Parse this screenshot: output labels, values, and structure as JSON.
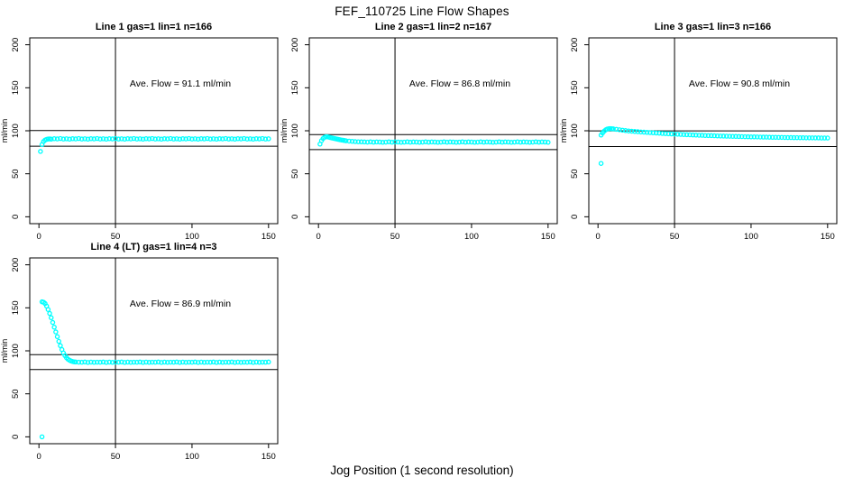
{
  "title": "FEF_110725  Line Flow Shapes",
  "xlabel": "Jog Position (1 second resolution)",
  "colors": {
    "points": "#00FFFF",
    "axis": "#000000"
  },
  "chart_data": [
    {
      "type": "scatter",
      "title": "Line 1 gas=1 lin=1 n=166",
      "annotation": "Ave. Flow =  91.1  ml/min",
      "ave_flow_ml_min": 91.1,
      "ylabel": "ml/min",
      "xlim": [
        0,
        150
      ],
      "ylim": [
        0,
        200
      ],
      "xticks": [
        0,
        50,
        100,
        150
      ],
      "yticks": [
        0,
        50,
        100,
        150,
        200
      ],
      "vline": 50,
      "hlines": [
        100.2,
        82.0
      ],
      "points": [
        [
          1,
          76
        ],
        [
          2,
          84
        ],
        [
          3,
          87.5
        ],
        [
          4,
          89.2
        ],
        [
          5,
          90
        ],
        [
          6,
          90.4
        ],
        [
          7,
          90.6
        ],
        [
          8,
          90.3
        ],
        [
          10,
          90.8
        ],
        [
          12,
          90.5
        ],
        [
          14,
          91.0
        ],
        [
          16,
          90.4
        ],
        [
          18,
          90.7
        ],
        [
          20,
          90.3
        ],
        [
          22,
          90.8
        ],
        [
          24,
          90.5
        ],
        [
          26,
          91.0
        ],
        [
          28,
          90.4
        ],
        [
          30,
          90.7
        ],
        [
          32,
          90.3
        ],
        [
          34,
          90.8
        ],
        [
          36,
          90.5
        ],
        [
          38,
          91.0
        ],
        [
          40,
          90.4
        ],
        [
          42,
          90.7
        ],
        [
          44,
          90.3
        ],
        [
          46,
          90.8
        ],
        [
          48,
          90.5
        ],
        [
          50,
          91.0
        ],
        [
          52,
          90.4
        ],
        [
          54,
          90.7
        ],
        [
          56,
          90.3
        ],
        [
          58,
          90.8
        ],
        [
          60,
          90.5
        ],
        [
          62,
          91.0
        ],
        [
          64,
          90.4
        ],
        [
          66,
          90.7
        ],
        [
          68,
          90.3
        ],
        [
          70,
          90.8
        ],
        [
          72,
          90.5
        ],
        [
          74,
          91.0
        ],
        [
          76,
          90.4
        ],
        [
          78,
          90.7
        ],
        [
          80,
          90.3
        ],
        [
          82,
          90.8
        ],
        [
          84,
          90.5
        ],
        [
          86,
          91.0
        ],
        [
          88,
          90.4
        ],
        [
          90,
          90.7
        ],
        [
          92,
          90.3
        ],
        [
          94,
          90.8
        ],
        [
          96,
          90.5
        ],
        [
          98,
          91.0
        ],
        [
          100,
          90.4
        ],
        [
          102,
          90.7
        ],
        [
          104,
          90.3
        ],
        [
          106,
          90.8
        ],
        [
          108,
          90.5
        ],
        [
          110,
          91.0
        ],
        [
          112,
          90.4
        ],
        [
          114,
          90.7
        ],
        [
          116,
          90.3
        ],
        [
          118,
          90.8
        ],
        [
          120,
          90.5
        ],
        [
          122,
          91.0
        ],
        [
          124,
          90.4
        ],
        [
          126,
          90.7
        ],
        [
          128,
          90.3
        ],
        [
          130,
          90.8
        ],
        [
          132,
          90.5
        ],
        [
          134,
          91.0
        ],
        [
          136,
          90.4
        ],
        [
          138,
          90.7
        ],
        [
          140,
          90.3
        ],
        [
          142,
          90.8
        ],
        [
          144,
          90.5
        ],
        [
          146,
          91.0
        ],
        [
          148,
          90.4
        ],
        [
          150,
          90.7
        ]
      ]
    },
    {
      "type": "scatter",
      "title": "Line 2 gas=1 lin=2 n=167",
      "annotation": "Ave. Flow =  86.8  ml/min",
      "ave_flow_ml_min": 86.8,
      "ylabel": "ml/min",
      "xlim": [
        0,
        150
      ],
      "ylim": [
        0,
        200
      ],
      "xticks": [
        0,
        50,
        100,
        150
      ],
      "yticks": [
        0,
        50,
        100,
        150,
        200
      ],
      "vline": 50,
      "hlines": [
        95.5,
        78.1
      ],
      "points": [
        [
          1,
          84.5
        ],
        [
          2,
          88.5
        ],
        [
          3,
          91
        ],
        [
          4,
          92.5
        ],
        [
          5,
          93
        ],
        [
          6,
          92.9
        ],
        [
          7,
          92.5
        ],
        [
          8,
          92
        ],
        [
          9,
          91.6
        ],
        [
          10,
          91.2
        ],
        [
          11,
          90.8
        ],
        [
          12,
          90.4
        ],
        [
          13,
          90
        ],
        [
          14,
          89.6
        ],
        [
          15,
          89.3
        ],
        [
          16,
          89
        ],
        [
          17,
          88.7
        ],
        [
          18,
          88.4
        ],
        [
          20,
          88
        ],
        [
          22,
          87.7
        ],
        [
          24,
          87.4
        ],
        [
          26,
          87.2
        ],
        [
          28,
          87.1
        ],
        [
          30,
          87
        ],
        [
          32,
          86.8
        ],
        [
          34,
          87.1
        ],
        [
          36,
          86.7
        ],
        [
          38,
          87.0
        ],
        [
          40,
          86.9
        ],
        [
          42,
          86.6
        ],
        [
          44,
          86.8
        ],
        [
          46,
          87.1
        ],
        [
          48,
          86.7
        ],
        [
          50,
          87.0
        ],
        [
          52,
          86.9
        ],
        [
          54,
          86.6
        ],
        [
          56,
          86.8
        ],
        [
          58,
          87.1
        ],
        [
          60,
          86.7
        ],
        [
          62,
          87.0
        ],
        [
          64,
          86.9
        ],
        [
          66,
          86.6
        ],
        [
          68,
          86.8
        ],
        [
          70,
          87.1
        ],
        [
          72,
          86.7
        ],
        [
          74,
          87.0
        ],
        [
          76,
          86.9
        ],
        [
          78,
          86.6
        ],
        [
          80,
          86.8
        ],
        [
          82,
          87.1
        ],
        [
          84,
          86.7
        ],
        [
          86,
          87.0
        ],
        [
          88,
          86.9
        ],
        [
          90,
          86.6
        ],
        [
          92,
          86.8
        ],
        [
          94,
          87.1
        ],
        [
          96,
          86.7
        ],
        [
          98,
          87.0
        ],
        [
          100,
          86.9
        ],
        [
          102,
          86.6
        ],
        [
          104,
          86.8
        ],
        [
          106,
          87.1
        ],
        [
          108,
          86.7
        ],
        [
          110,
          87.0
        ],
        [
          112,
          86.9
        ],
        [
          114,
          86.6
        ],
        [
          116,
          86.8
        ],
        [
          118,
          87.1
        ],
        [
          120,
          86.7
        ],
        [
          122,
          87.0
        ],
        [
          124,
          86.9
        ],
        [
          126,
          86.6
        ],
        [
          128,
          86.8
        ],
        [
          130,
          87.1
        ],
        [
          132,
          86.7
        ],
        [
          134,
          87.0
        ],
        [
          136,
          86.9
        ],
        [
          138,
          86.6
        ],
        [
          140,
          86.8
        ],
        [
          142,
          87.1
        ],
        [
          144,
          86.7
        ],
        [
          146,
          87.0
        ],
        [
          148,
          86.9
        ],
        [
          150,
          86.6
        ]
      ]
    },
    {
      "type": "scatter",
      "title": "Line 3 gas=1 lin=3 n=166",
      "annotation": "Ave. Flow =  90.8  ml/min",
      "ave_flow_ml_min": 90.8,
      "ylabel": "ml/min",
      "xlim": [
        0,
        150
      ],
      "ylim": [
        0,
        200
      ],
      "xticks": [
        0,
        50,
        100,
        150
      ],
      "yticks": [
        0,
        50,
        100,
        150,
        200
      ],
      "vline": 50,
      "hlines": [
        99.9,
        81.7
      ],
      "points": [
        [
          2,
          62
        ],
        [
          2,
          95
        ],
        [
          3,
          97.5
        ],
        [
          4,
          99.5
        ],
        [
          5,
          101
        ],
        [
          6,
          102
        ],
        [
          7,
          102.4
        ],
        [
          8,
          102.5
        ],
        [
          9,
          102.4
        ],
        [
          10,
          102.2
        ],
        [
          12,
          101.7
        ],
        [
          14,
          101.2
        ],
        [
          16,
          100.7
        ],
        [
          18,
          100.2
        ],
        [
          20,
          99.8
        ],
        [
          22,
          99.5
        ],
        [
          24,
          99.2
        ],
        [
          26,
          98.9
        ],
        [
          28,
          98.6
        ],
        [
          30,
          98.4
        ],
        [
          32,
          98.1
        ],
        [
          34,
          97.9
        ],
        [
          36,
          97.6
        ],
        [
          38,
          97.4
        ],
        [
          40,
          97.2
        ],
        [
          42,
          96.9
        ],
        [
          44,
          96.7
        ],
        [
          46,
          96.5
        ],
        [
          48,
          96.3
        ],
        [
          50,
          96.1
        ],
        [
          52,
          96.0
        ],
        [
          54,
          95.8
        ],
        [
          56,
          95.6
        ],
        [
          58,
          95.4
        ],
        [
          60,
          95.3
        ],
        [
          62,
          95.1
        ],
        [
          64,
          95.0
        ],
        [
          66,
          94.8
        ],
        [
          68,
          94.7
        ],
        [
          70,
          94.5
        ],
        [
          72,
          94.4
        ],
        [
          74,
          94.3
        ],
        [
          76,
          94.2
        ],
        [
          78,
          94.0
        ],
        [
          80,
          93.9
        ],
        [
          82,
          93.8
        ],
        [
          84,
          93.7
        ],
        [
          86,
          93.6
        ],
        [
          88,
          93.5
        ],
        [
          90,
          93.4
        ],
        [
          92,
          93.3
        ],
        [
          94,
          93.2
        ],
        [
          96,
          93.1
        ],
        [
          98,
          93.0
        ],
        [
          100,
          92.9
        ],
        [
          102,
          92.9
        ],
        [
          104,
          92.8
        ],
        [
          106,
          92.7
        ],
        [
          108,
          92.6
        ],
        [
          110,
          92.6
        ],
        [
          112,
          92.5
        ],
        [
          114,
          92.4
        ],
        [
          116,
          92.4
        ],
        [
          118,
          92.3
        ],
        [
          120,
          92.3
        ],
        [
          122,
          92.2
        ],
        [
          124,
          92.1
        ],
        [
          126,
          92.1
        ],
        [
          128,
          92.0
        ],
        [
          130,
          92.0
        ],
        [
          132,
          91.9
        ],
        [
          134,
          91.9
        ],
        [
          136,
          91.8
        ],
        [
          138,
          91.8
        ],
        [
          140,
          91.8
        ],
        [
          142,
          91.7
        ],
        [
          144,
          91.7
        ],
        [
          146,
          91.6
        ],
        [
          148,
          91.6
        ],
        [
          150,
          91.6
        ]
      ]
    },
    {
      "type": "scatter",
      "title": "Line 4 (LT) gas=1 lin=4 n=3",
      "annotation": "Ave. Flow =  86.9  ml/min",
      "ave_flow_ml_min": 86.9,
      "ylabel": "ml/min",
      "xlim": [
        0,
        150
      ],
      "ylim": [
        0,
        200
      ],
      "xticks": [
        0,
        50,
        100,
        150
      ],
      "yticks": [
        0,
        50,
        100,
        150,
        200
      ],
      "vline": 50,
      "hlines": [
        95.6,
        78.2
      ],
      "points": [
        [
          2,
          0
        ],
        [
          2,
          157
        ],
        [
          3,
          156.5
        ],
        [
          4,
          155
        ],
        [
          5,
          152
        ],
        [
          6,
          148
        ],
        [
          7,
          143.5
        ],
        [
          8,
          138.5
        ],
        [
          9,
          133
        ],
        [
          10,
          127.5
        ],
        [
          11,
          122
        ],
        [
          12,
          116.5
        ],
        [
          13,
          111
        ],
        [
          14,
          106
        ],
        [
          15,
          101.5
        ],
        [
          16,
          97.5
        ],
        [
          17,
          94.5
        ],
        [
          18,
          92
        ],
        [
          19,
          90.2
        ],
        [
          20,
          89
        ],
        [
          21,
          88.2
        ],
        [
          22,
          87.6
        ],
        [
          23,
          87.2
        ],
        [
          24,
          87
        ],
        [
          26,
          86.8
        ],
        [
          28,
          86.7
        ],
        [
          30,
          87.0
        ],
        [
          32,
          86.5
        ],
        [
          34,
          86.9
        ],
        [
          36,
          86.6
        ],
        [
          38,
          86.8
        ],
        [
          40,
          86.7
        ],
        [
          42,
          87.0
        ],
        [
          44,
          86.5
        ],
        [
          46,
          86.9
        ],
        [
          48,
          86.6
        ],
        [
          50,
          86.8
        ],
        [
          52,
          86.7
        ],
        [
          54,
          87.0
        ],
        [
          56,
          86.5
        ],
        [
          58,
          86.9
        ],
        [
          60,
          86.6
        ],
        [
          62,
          86.8
        ],
        [
          64,
          86.7
        ],
        [
          66,
          87.0
        ],
        [
          68,
          86.5
        ],
        [
          70,
          86.9
        ],
        [
          72,
          86.6
        ],
        [
          74,
          86.8
        ],
        [
          76,
          86.7
        ],
        [
          78,
          87.0
        ],
        [
          80,
          86.5
        ],
        [
          82,
          86.9
        ],
        [
          84,
          86.6
        ],
        [
          86,
          86.8
        ],
        [
          88,
          86.7
        ],
        [
          90,
          87.0
        ],
        [
          92,
          86.5
        ],
        [
          94,
          86.9
        ],
        [
          96,
          86.6
        ],
        [
          98,
          86.8
        ],
        [
          100,
          86.7
        ],
        [
          102,
          87.0
        ],
        [
          104,
          86.5
        ],
        [
          106,
          86.9
        ],
        [
          108,
          86.6
        ],
        [
          110,
          86.8
        ],
        [
          112,
          86.7
        ],
        [
          114,
          87.0
        ],
        [
          116,
          86.5
        ],
        [
          118,
          86.9
        ],
        [
          120,
          86.6
        ],
        [
          122,
          86.8
        ],
        [
          124,
          86.7
        ],
        [
          126,
          87.0
        ],
        [
          128,
          86.5
        ],
        [
          130,
          86.9
        ],
        [
          132,
          86.6
        ],
        [
          134,
          86.8
        ],
        [
          136,
          86.7
        ],
        [
          138,
          87.0
        ],
        [
          140,
          86.5
        ],
        [
          142,
          86.9
        ],
        [
          144,
          86.6
        ],
        [
          146,
          86.8
        ],
        [
          148,
          86.7
        ],
        [
          150,
          87.0
        ]
      ]
    }
  ]
}
